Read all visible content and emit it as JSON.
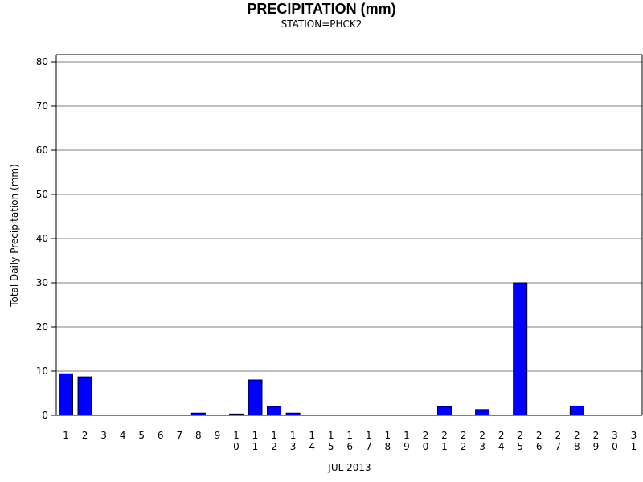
{
  "chart_data": {
    "type": "bar",
    "title": "PRECIPITATION (mm)",
    "subtitle": "STATION=PHCK2",
    "xlabel": "JUL 2013",
    "ylabel": "Total Daily Precipitation (mm)",
    "ylim": [
      0,
      80
    ],
    "yticks": [
      0,
      10,
      20,
      30,
      40,
      50,
      60,
      70,
      80
    ],
    "grid": true,
    "bar_color": "#0000ff",
    "categories": [
      "1",
      "2",
      "3",
      "4",
      "5",
      "6",
      "7",
      "8",
      "9",
      "10",
      "11",
      "12",
      "13",
      "14",
      "15",
      "16",
      "17",
      "18",
      "19",
      "20",
      "21",
      "22",
      "23",
      "24",
      "25",
      "26",
      "27",
      "28",
      "29",
      "30",
      "31"
    ],
    "values": [
      9.4,
      8.7,
      0,
      0,
      0,
      0,
      0,
      0.5,
      0,
      0.3,
      8.0,
      2.0,
      0.5,
      0,
      0,
      0,
      0,
      0,
      0,
      0,
      2.0,
      0,
      1.3,
      0,
      30.0,
      0,
      0,
      2.1,
      0,
      0,
      0
    ]
  }
}
